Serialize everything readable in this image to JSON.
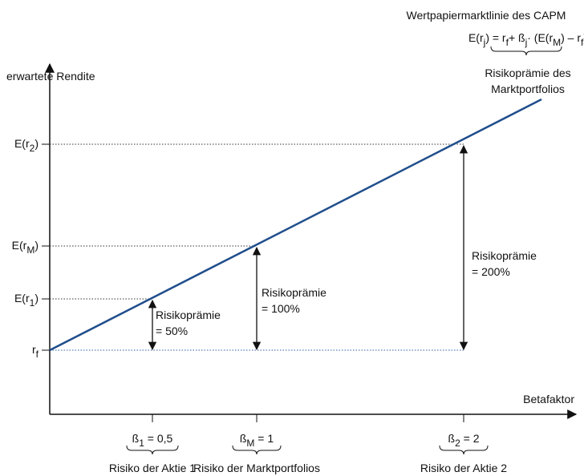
{
  "title": "Wertpapiermarktlinie des CAPM",
  "formula": [
    "E(r",
    "j",
    ") = r",
    "f",
    "+ ß",
    "j",
    "· (E(r",
    "M",
    ") – r",
    "f",
    ")"
  ],
  "formula_note": [
    "Risikoprämie des",
    "Marktportfolios"
  ],
  "y_axis_label": "erwartete Rendite",
  "x_axis_label": "Betafaktor",
  "y_labels": [
    [
      "E(r",
      "2",
      ")"
    ],
    [
      "E(r",
      "M",
      ")"
    ],
    [
      "E(r",
      "1",
      ")"
    ],
    [
      "r",
      "f"
    ]
  ],
  "premiums": [
    [
      "Risikoprämie",
      "= 50%"
    ],
    [
      "Risikoprämie",
      "= 100%"
    ],
    [
      "Risikoprämie",
      "= 200%"
    ]
  ],
  "betas": [
    [
      "ß",
      "1",
      " = 0,5"
    ],
    [
      "ß",
      "M",
      " = 1"
    ],
    [
      "ß",
      "2",
      " = 2"
    ]
  ],
  "beta_notes": [
    "Risiko der Aktie 1",
    "Risiko der Marktportfolios",
    "Risiko der Aktie 2"
  ]
}
